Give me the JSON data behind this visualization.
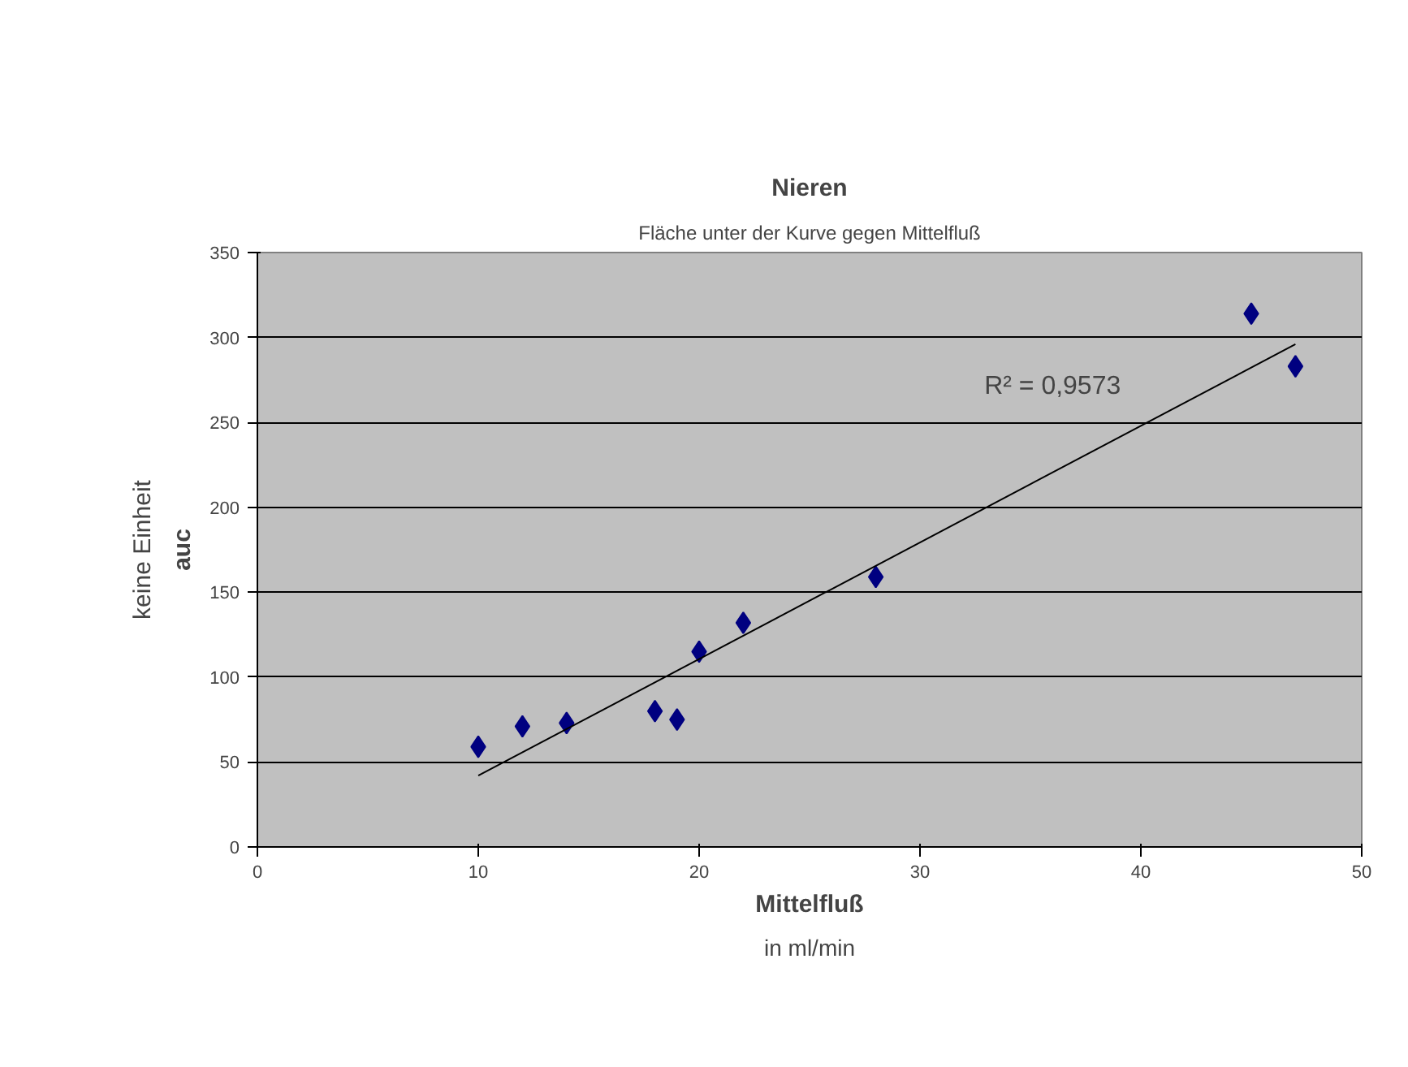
{
  "chart_data": {
    "type": "scatter",
    "title": "Nieren",
    "subtitle": "Fläche unter der Kurve gegen Mittelfluß",
    "xlabel": "Mittelfluß\nin ml/min",
    "ylabel": "auc\nkeine Einheit",
    "xlim": [
      0,
      50
    ],
    "xticks": [
      0,
      10,
      20,
      30,
      40,
      50
    ],
    "ylim": [
      0,
      350
    ],
    "yticks": [
      0,
      50,
      100,
      150,
      200,
      250,
      300,
      350
    ],
    "grid": "y",
    "marker": "diamond",
    "series": [
      {
        "color": "#000080",
        "x": [
          10,
          12,
          14,
          18,
          19,
          20,
          22,
          28,
          45,
          47
        ],
        "values": [
          59,
          71,
          73,
          80,
          75,
          115,
          132,
          159,
          314,
          283
        ]
      },
      {
        "type": "line",
        "color": "#000000",
        "marker": "none",
        "line_style": "solid",
        "x": [
          10,
          47
        ],
        "values": [
          42,
          296
        ]
      }
    ],
    "annotations": [
      "R² = 0,9573"
    ]
  }
}
